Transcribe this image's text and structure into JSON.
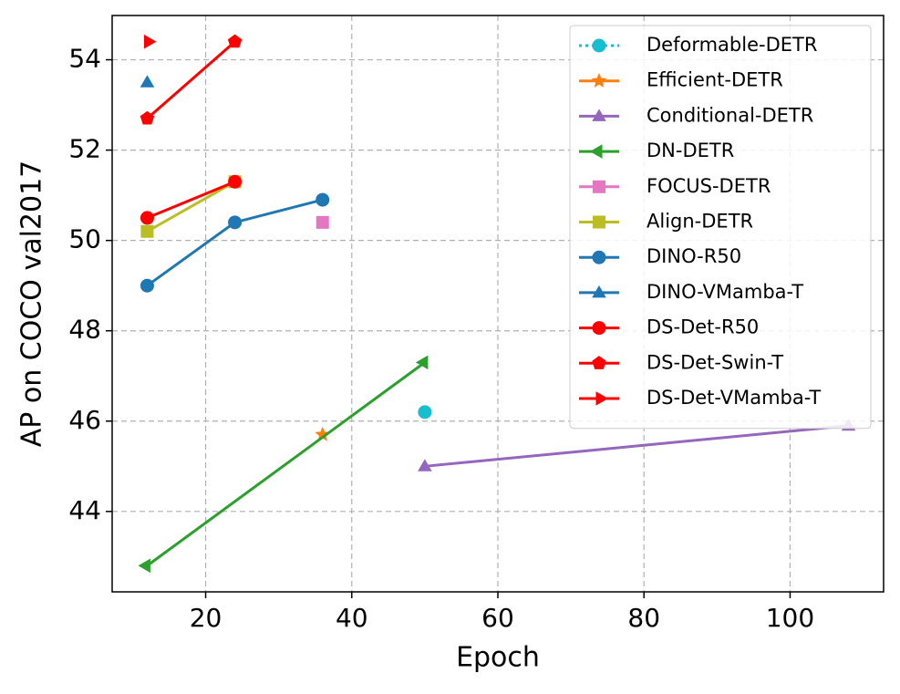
{
  "chart_data": {
    "type": "line",
    "xlabel": "Epoch",
    "ylabel": "AP on COCO val2017",
    "xlim": [
      7.2,
      112.8
    ],
    "ylim": [
      42.22,
      54.98
    ],
    "xticks": [
      20,
      40,
      60,
      80,
      100
    ],
    "yticks": [
      44,
      46,
      48,
      50,
      52,
      54
    ],
    "grid": true,
    "legend": "upper right",
    "series": [
      {
        "name": "Deformable-DETR",
        "color": "#17becf",
        "marker": "circle",
        "linestyle": "dotted",
        "x": [
          50
        ],
        "y": [
          46.2
        ]
      },
      {
        "name": "Efficient-DETR",
        "color": "#ff7f0e",
        "marker": "star",
        "linestyle": "solid",
        "x": [
          36
        ],
        "y": [
          45.7
        ]
      },
      {
        "name": "Conditional-DETR",
        "color": "#9467bd",
        "marker": "triangle-up",
        "linestyle": "solid",
        "x": [
          50,
          108
        ],
        "y": [
          45.0,
          45.9
        ]
      },
      {
        "name": "DN-DETR",
        "color": "#2ca02c",
        "marker": "triangle-left",
        "linestyle": "solid",
        "x": [
          12,
          50
        ],
        "y": [
          42.8,
          47.3
        ]
      },
      {
        "name": "FOCUS-DETR",
        "color": "#e377c2",
        "marker": "square",
        "linestyle": "solid",
        "x": [
          36
        ],
        "y": [
          50.4
        ]
      },
      {
        "name": "Align-DETR",
        "color": "#bcbd22",
        "marker": "square",
        "linestyle": "solid",
        "x": [
          12,
          24
        ],
        "y": [
          50.2,
          51.3
        ]
      },
      {
        "name": "DINO-R50",
        "color": "#1f77b4",
        "marker": "circle",
        "linestyle": "solid",
        "x": [
          12,
          24,
          36
        ],
        "y": [
          49.0,
          50.4,
          50.9
        ]
      },
      {
        "name": "DINO-VMamba-T",
        "color": "#1f77b4",
        "marker": "triangle-up",
        "linestyle": "solid",
        "x": [
          12
        ],
        "y": [
          53.5
        ]
      },
      {
        "name": "DS-Det-R50",
        "color": "#ff0000",
        "marker": "circle",
        "linestyle": "solid",
        "x": [
          12,
          24
        ],
        "y": [
          50.5,
          51.3
        ]
      },
      {
        "name": "DS-Det-Swin-T",
        "color": "#ff0000",
        "marker": "pentagon",
        "linestyle": "solid",
        "x": [
          12,
          24
        ],
        "y": [
          52.7,
          54.4
        ]
      },
      {
        "name": "DS-Det-VMamba-T",
        "color": "#ff0000",
        "marker": "triangle-right",
        "linestyle": "solid",
        "x": [
          12
        ],
        "y": [
          54.4
        ]
      }
    ]
  }
}
